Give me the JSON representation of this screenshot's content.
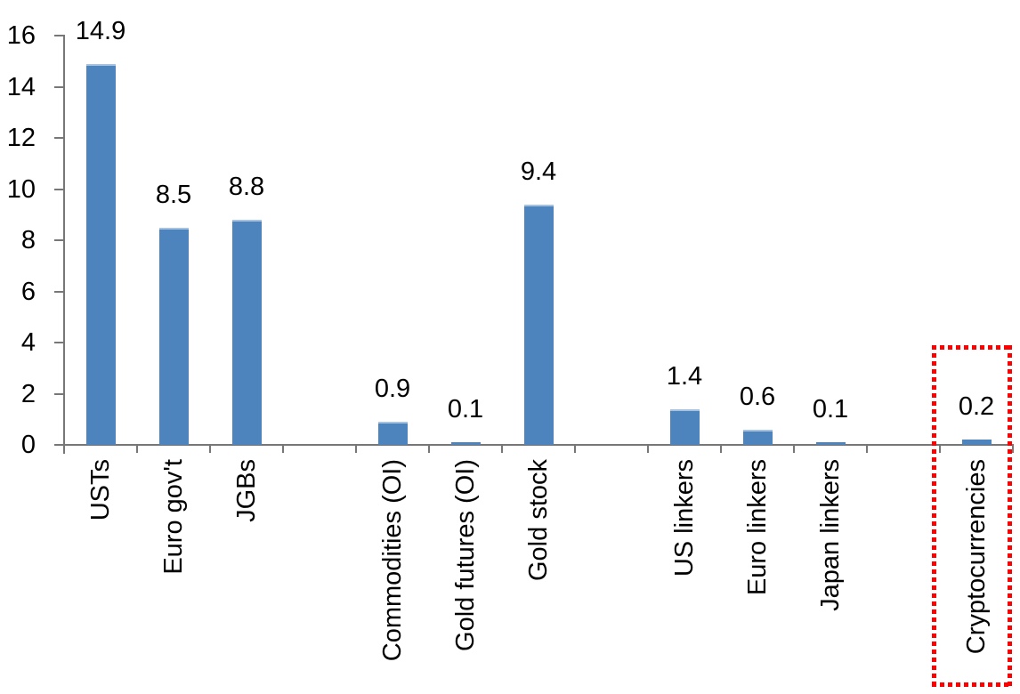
{
  "chart_data": {
    "type": "bar",
    "title": "",
    "xlabel": "",
    "ylabel": "",
    "categories": [
      "USTs",
      "Euro gov't",
      "JGBs",
      "Commodities (OI)",
      "Gold futures (OI)",
      "Gold stock",
      "US linkers",
      "Euro linkers",
      "Japan linkers",
      "Cryptocurrencies"
    ],
    "values": [
      14.9,
      8.5,
      8.8,
      0.9,
      0.1,
      9.4,
      1.4,
      0.6,
      0.1,
      0.2
    ],
    "data_labels": [
      "14.9",
      "8.5",
      "8.8",
      "0.9",
      "0.1",
      "9.4",
      "1.4",
      "0.6",
      "0.1",
      "0.2"
    ],
    "ylim": [
      0,
      16
    ],
    "yticks": [
      0,
      2,
      4,
      6,
      8,
      10,
      12,
      14,
      16
    ],
    "grid": false,
    "legend": false,
    "bar_color": "#4d84bd",
    "bar_top_highlight": "#a6c2de",
    "axis_color": "#777777",
    "text_color": "#000000",
    "slot_indices": [
      0,
      1,
      2,
      4,
      5,
      6,
      8,
      9,
      10,
      12
    ],
    "total_slots": 13,
    "highlight": {
      "category": "Cryptocurrencies",
      "style": "red-dotted-box",
      "color": "#ff0000"
    }
  }
}
